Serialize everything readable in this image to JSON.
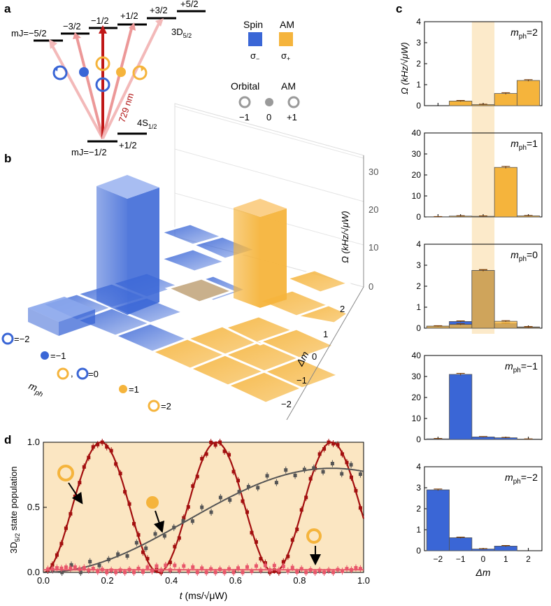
{
  "panel_labels": {
    "a": "a",
    "b": "b",
    "c": "c",
    "d": "d"
  },
  "colors": {
    "spin_minus": "#3a66d6",
    "spin_plus": "#f5b43c",
    "highlight_band": "#fbe3b8",
    "panel_d_bg": "#fbe6c2",
    "red_curve": "#a30f0f",
    "gray_curve": "#555555",
    "pink_curve": "#e8566a"
  },
  "panel_a": {
    "mj_levels": [
      "mJ=−5/2",
      "−3/2",
      "−1/2",
      "+1/2",
      "+3/2",
      "+5/2"
    ],
    "upper_state": "3D",
    "upper_state_sub": "5/2",
    "lower_state": "4S",
    "lower_state_sub": "1/2",
    "lower_mj_left": "mJ=−1/2",
    "lower_mj_right": "+1/2",
    "laser": "729 nm"
  },
  "legend": {
    "spin_label": "Spin",
    "am_label": "AM",
    "sigma_minus": "σ",
    "sigma_minus_sub": "−",
    "sigma_plus": "σ",
    "sigma_plus_sub": "+",
    "orbital_label": "Orbital",
    "orbital_am_label": "AM",
    "orbital_values": [
      "−1",
      "0",
      "+1"
    ]
  },
  "panel_b": {
    "zlabel": "Ω (kHz/√μW)",
    "zticks": [
      "0",
      "10",
      "20",
      "30"
    ],
    "dm_label": "Δm",
    "dm_ticks": [
      "2",
      "1",
      "0",
      "−1",
      "−2"
    ],
    "mph_label": "m",
    "mph_sub": "ph",
    "mph_entries": [
      "=−2",
      "=−1",
      ",",
      "=0",
      "=1",
      "=2"
    ]
  },
  "chart_data": [
    {
      "type": "bar",
      "panel": "c",
      "title": "m_ph=2",
      "title_main": "m",
      "title_sub": "ph",
      "title_value": "=2",
      "xlabel": "Δm",
      "ylabel": "Ω (kHz/√μW)",
      "categories": [
        -2,
        -1,
        0,
        1,
        2
      ],
      "ylim": [
        0,
        4
      ],
      "yticks": [
        "0",
        "1",
        "2",
        "3",
        "4"
      ],
      "series": [
        {
          "color": "#f5b43c",
          "values": [
            0,
            0.22,
            0.05,
            0.58,
            1.2
          ],
          "errors": [
            0,
            0.03,
            0.02,
            0.04,
            0.04
          ]
        }
      ]
    },
    {
      "type": "bar",
      "panel": "c",
      "title": "m_ph=1",
      "title_main": "m",
      "title_sub": "ph",
      "title_value": "=1",
      "xlabel": "Δm",
      "ylabel": "Ω (kHz/√μW)",
      "categories": [
        -2,
        -1,
        0,
        1,
        2
      ],
      "ylim": [
        0,
        40
      ],
      "yticks": [
        "0",
        "10",
        "20",
        "30",
        "40"
      ],
      "series": [
        {
          "color": "#f5b43c",
          "values": [
            0.1,
            0.4,
            0.3,
            23.6,
            0.5
          ],
          "errors": [
            0.1,
            0.2,
            0.2,
            0.5,
            0.2
          ]
        }
      ]
    },
    {
      "type": "bar",
      "panel": "c",
      "title": "m_ph=0",
      "title_main": "m",
      "title_sub": "ph",
      "title_value": "=0",
      "xlabel": "Δm",
      "ylabel": "Ω (kHz/√μW)",
      "categories": [
        -2,
        -1,
        0,
        1,
        2
      ],
      "ylim": [
        0,
        4
      ],
      "yticks": [
        "0",
        "1",
        "2",
        "3",
        "4"
      ],
      "series": [
        {
          "color": "#3a66d6",
          "values": [
            0.08,
            0.32,
            2.75,
            0.22,
            0.06
          ],
          "errors": [
            0.02,
            0.03,
            0.04,
            0.03,
            0.02
          ]
        },
        {
          "color": "#f5b43c",
          "values": [
            0.1,
            0.18,
            2.75,
            0.33,
            0.04
          ],
          "errors": [
            0.02,
            0.03,
            0.04,
            0.03,
            0.02
          ]
        }
      ]
    },
    {
      "type": "bar",
      "panel": "c",
      "title": "m_ph=−1",
      "title_main": "m",
      "title_sub": "ph",
      "title_value": "=−1",
      "xlabel": "Δm",
      "ylabel": "Ω (kHz/√μW)",
      "categories": [
        -2,
        -1,
        0,
        1,
        2
      ],
      "ylim": [
        0,
        40
      ],
      "yticks": [
        "0",
        "10",
        "20",
        "30",
        "40"
      ],
      "series": [
        {
          "color": "#3a66d6",
          "values": [
            0.3,
            31,
            1.2,
            0.8,
            0.2
          ],
          "errors": [
            0.2,
            0.5,
            0.2,
            0.2,
            0.1
          ]
        }
      ]
    },
    {
      "type": "bar",
      "panel": "c",
      "title": "m_ph=−2",
      "title_main": "m",
      "title_sub": "ph",
      "title_value": "=−2",
      "xlabel": "Δm",
      "ylabel": "Ω (kHz/√μW)",
      "categories": [
        -2,
        -1,
        0,
        1,
        2
      ],
      "xticks": [
        "−2",
        "−1",
        "0",
        "1",
        "2"
      ],
      "ylim": [
        0,
        4
      ],
      "yticks": [
        "0",
        "1",
        "2",
        "3",
        "4"
      ],
      "series": [
        {
          "color": "#3a66d6",
          "values": [
            2.9,
            0.62,
            0.08,
            0.22,
            0
          ],
          "errors": [
            0.04,
            0.03,
            0.02,
            0.03,
            0
          ]
        }
      ]
    },
    {
      "type": "line",
      "panel": "d",
      "xlabel_main": "t",
      "xlabel_units": " (ms/√μW)",
      "ylabel_main": "3D",
      "ylabel_sub": "5/2",
      "ylabel_rest": " state population",
      "xlim": [
        0,
        1
      ],
      "ylim": [
        0,
        1
      ],
      "xticks": [
        "0.0",
        "0.2",
        "0.4",
        "0.6",
        "0.8",
        "1.0"
      ],
      "yticks": [
        "0.0",
        "0.5",
        "1.0"
      ],
      "series": [
        {
          "color": "#a30f0f",
          "model": "sin2",
          "amplitude": 1.0,
          "period": 0.36
        },
        {
          "color": "#555555",
          "model": "sin2",
          "amplitude": 0.8,
          "period": 1.8
        },
        {
          "color": "#e8566a",
          "model": "flat",
          "amplitude": 0.02
        }
      ]
    }
  ]
}
